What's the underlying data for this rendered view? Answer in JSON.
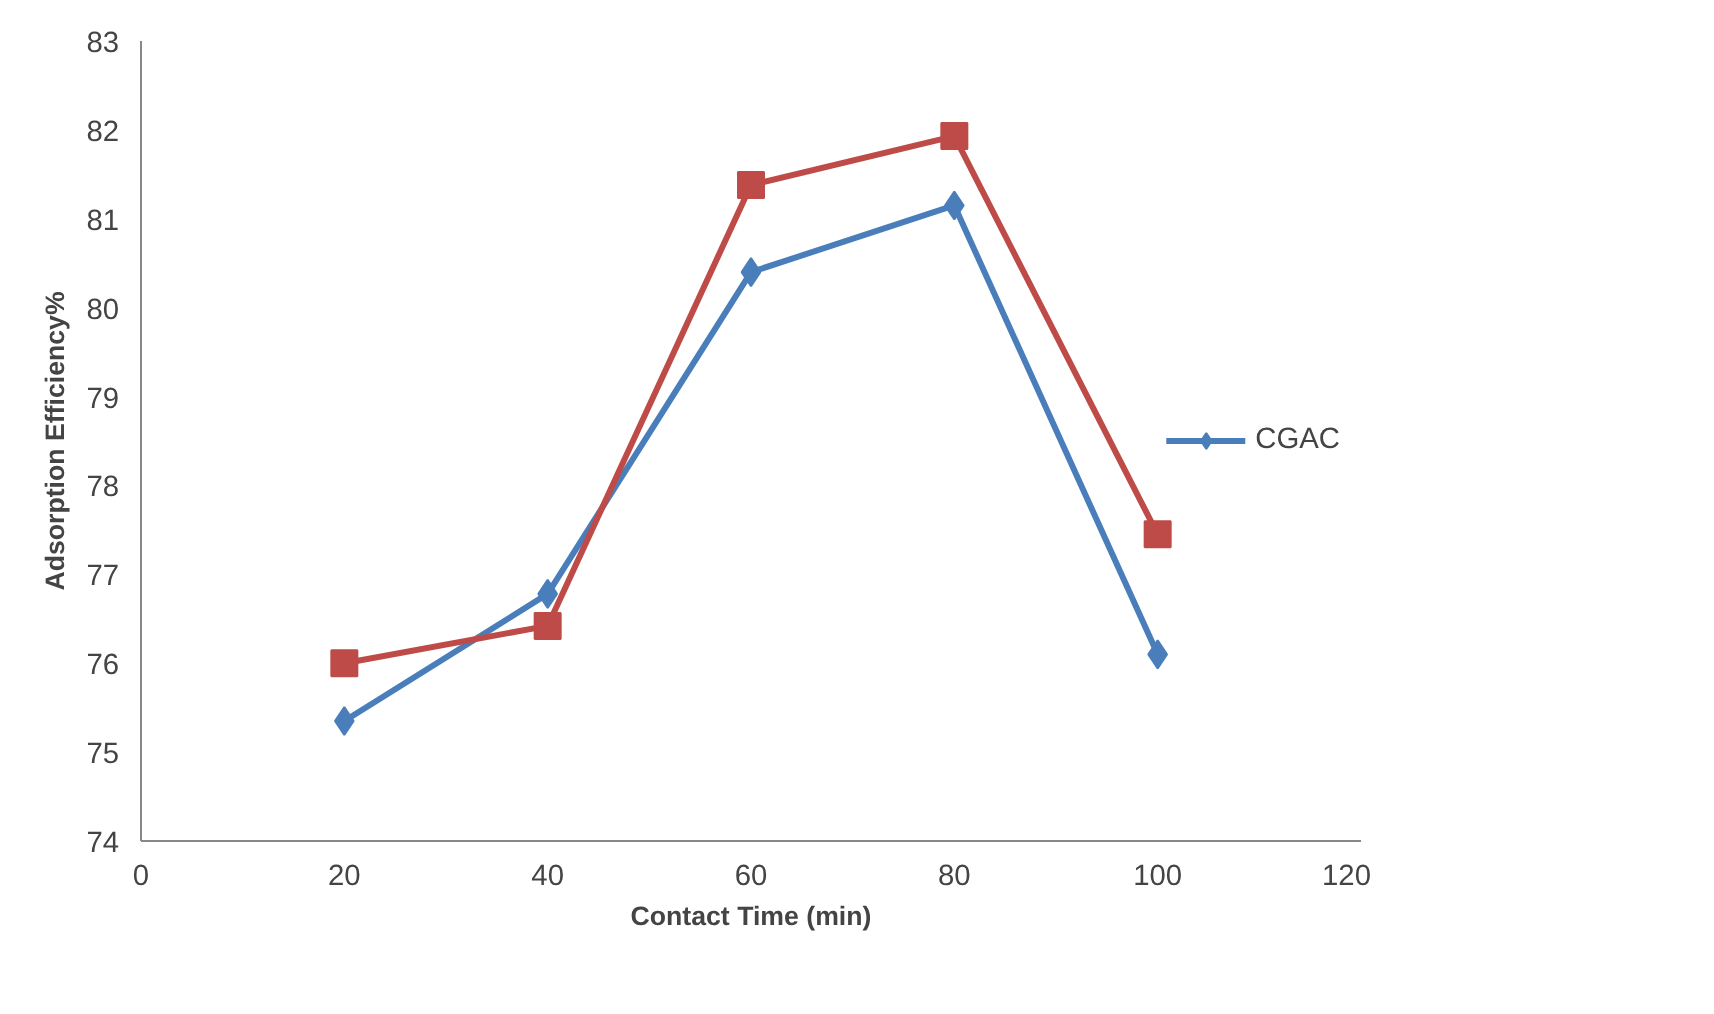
{
  "chart_data": {
    "type": "line",
    "xlabel": "Contact Time (min)",
    "ylabel": "Adsorption Efficiency%",
    "x": [
      20,
      40,
      60,
      80,
      100
    ],
    "series": [
      {
        "name": "CGAC",
        "color": "#4a7ebb",
        "marker": "diamond",
        "values": [
          75.35,
          76.78,
          80.4,
          81.15,
          76.1
        ]
      },
      {
        "color": "#be4b48",
        "marker": "square",
        "values": [
          76.0,
          76.42,
          81.38,
          81.93,
          77.45
        ]
      }
    ],
    "xlim": [
      0,
      120
    ],
    "xticks": [
      0,
      20,
      40,
      60,
      80,
      100,
      120
    ],
    "ylim": [
      74,
      83
    ],
    "yticks": [
      74,
      75,
      76,
      77,
      78,
      79,
      80,
      81,
      82,
      83
    ],
    "grid": false,
    "legend": "right",
    "line_style": "solid"
  }
}
